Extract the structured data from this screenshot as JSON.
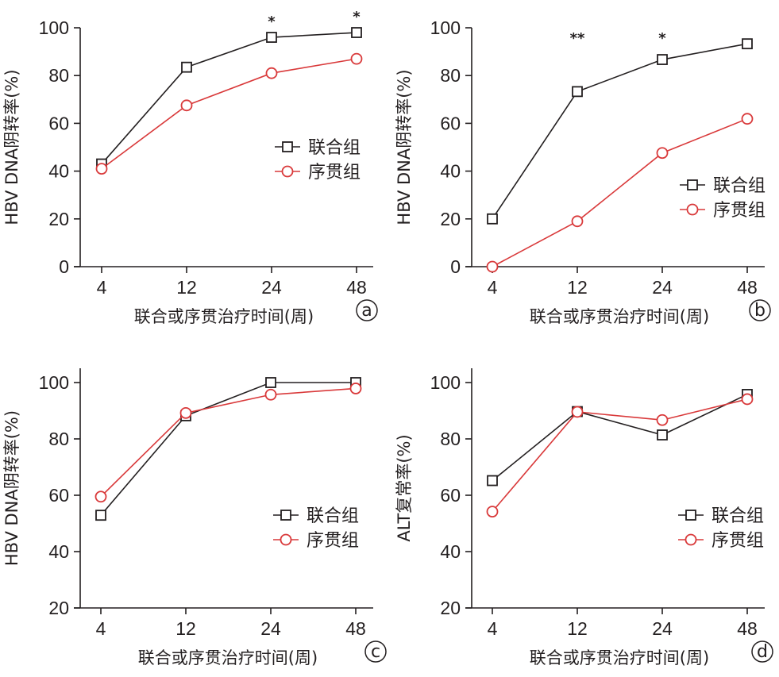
{
  "colors": {
    "combined": "#231f20",
    "sequential": "#d9393a"
  },
  "legend": [
    "联合组",
    "序贯组"
  ],
  "chart_data": [
    {
      "type": "line",
      "panel": "a",
      "title": "",
      "xlabel": "联合或序贯治疗时间(周)",
      "ylabel": "HBV DNA阴转率(%)",
      "categories": [
        "4",
        "12",
        "24",
        "48"
      ],
      "ylim": [
        0,
        100
      ],
      "yticks": [
        0,
        20,
        40,
        60,
        80,
        100
      ],
      "legend_position": "center-right",
      "series": [
        {
          "name": "联合组",
          "marker": "square",
          "values": [
            43,
            83.5,
            96,
            98
          ]
        },
        {
          "name": "序贯组",
          "marker": "circle",
          "values": [
            41,
            67.5,
            81,
            87
          ]
        }
      ],
      "annotations": [
        {
          "category": "24",
          "text": "*"
        },
        {
          "category": "48",
          "text": "*"
        }
      ]
    },
    {
      "type": "line",
      "panel": "b",
      "title": "",
      "xlabel": "联合或序贯治疗时间(周)",
      "ylabel": "HBV DNA阴转率(%)",
      "categories": [
        "4",
        "12",
        "24",
        "48"
      ],
      "ylim": [
        0,
        100
      ],
      "yticks": [
        0,
        20,
        40,
        60,
        80,
        100
      ],
      "legend_position": "lower-right",
      "series": [
        {
          "name": "联合组",
          "marker": "square",
          "values": [
            20,
            73.3,
            86.7,
            93.3
          ]
        },
        {
          "name": "序贯组",
          "marker": "circle",
          "values": [
            0,
            19,
            47.6,
            61.9
          ]
        }
      ],
      "annotations": [
        {
          "category": "12",
          "text": "**"
        },
        {
          "category": "24",
          "text": "*"
        }
      ]
    },
    {
      "type": "line",
      "panel": "c",
      "title": "",
      "xlabel": "联合或序贯治疗时间(周)",
      "ylabel": "HBV DNA阴转率(%)",
      "categories": [
        "4",
        "12",
        "24",
        "48"
      ],
      "ylim": [
        20,
        105
      ],
      "yticks": [
        20,
        40,
        60,
        80,
        100
      ],
      "legend_position": "center-right",
      "series": [
        {
          "name": "联合组",
          "marker": "square",
          "values": [
            52.9,
            88.2,
            100,
            100
          ]
        },
        {
          "name": "序贯组",
          "marker": "circle",
          "values": [
            59.5,
            89.2,
            95.7,
            97.9
          ]
        }
      ],
      "annotations": []
    },
    {
      "type": "line",
      "panel": "d",
      "title": "",
      "xlabel": "联合或序贯治疗时间(周)",
      "ylabel": "ALT复常率(%)",
      "categories": [
        "4",
        "12",
        "24",
        "48"
      ],
      "ylim": [
        20,
        105
      ],
      "yticks": [
        20,
        40,
        60,
        80,
        100
      ],
      "legend_position": "center-right",
      "series": [
        {
          "name": "联合组",
          "marker": "square",
          "values": [
            65.2,
            89.7,
            81.4,
            95.8
          ]
        },
        {
          "name": "序贯组",
          "marker": "circle",
          "values": [
            54.2,
            89.6,
            86.7,
            94.1
          ]
        }
      ],
      "annotations": []
    }
  ]
}
